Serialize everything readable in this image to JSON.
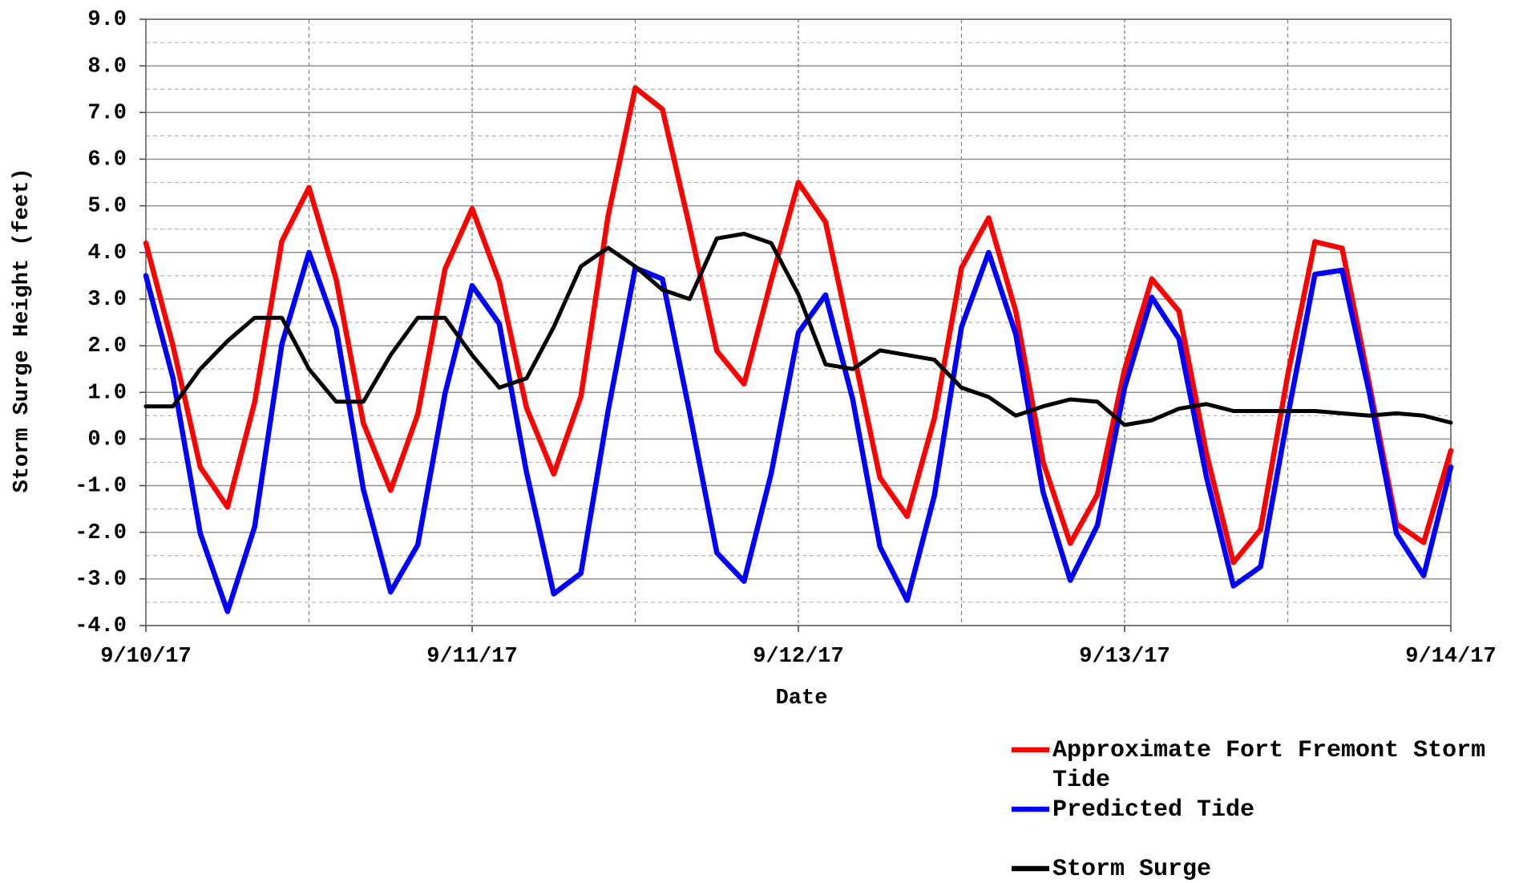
{
  "chart_data": {
    "type": "line",
    "xlabel": "Date",
    "ylabel": "Storm Surge Height (feet)",
    "x": [
      0,
      2,
      4,
      6,
      8,
      10,
      12,
      14,
      16,
      18,
      20,
      22,
      24,
      26,
      28,
      30,
      32,
      34,
      36,
      38,
      40,
      42,
      44,
      46,
      48,
      50,
      52,
      54,
      56,
      58,
      60,
      62,
      64,
      66,
      68,
      70,
      72,
      74,
      76,
      78,
      80,
      82,
      84,
      86,
      88,
      90,
      92,
      94,
      96
    ],
    "xlim": [
      0,
      96
    ],
    "xticks": [
      {
        "value": 0,
        "label": "9/10/17"
      },
      {
        "value": 24,
        "label": "9/11/17"
      },
      {
        "value": 48,
        "label": "9/12/17"
      },
      {
        "value": 72,
        "label": "9/13/17"
      },
      {
        "value": 96,
        "label": "9/14/17"
      }
    ],
    "ylim": [
      -4,
      9
    ],
    "yticks": [
      {
        "value": -4,
        "label": "-4.0"
      },
      {
        "value": -3,
        "label": "-3.0"
      },
      {
        "value": -2,
        "label": "-2.0"
      },
      {
        "value": -1,
        "label": "-1.0"
      },
      {
        "value": 0,
        "label": "0.0"
      },
      {
        "value": 1,
        "label": "1.0"
      },
      {
        "value": 2,
        "label": "2.0"
      },
      {
        "value": 3,
        "label": "3.0"
      },
      {
        "value": 4,
        "label": "4.0"
      },
      {
        "value": 5,
        "label": "5.0"
      },
      {
        "value": 6,
        "label": "6.0"
      },
      {
        "value": 7,
        "label": "7.0"
      },
      {
        "value": 8,
        "label": "8.0"
      },
      {
        "value": 9,
        "label": "9.0"
      }
    ],
    "grid": true,
    "legend": "bottom right",
    "series": [
      {
        "name": "Approximate Fort Fremont Storm Tide",
        "color": "#ff0000",
        "values": [
          4.2,
          1.99,
          -0.6,
          -1.46,
          0.79,
          4.24,
          5.39,
          3.42,
          0.34,
          -1.1,
          0.53,
          3.64,
          4.94,
          3.37,
          0.67,
          -0.75,
          0.91,
          4.78,
          7.53,
          7.07,
          4.55,
          1.89,
          1.18,
          3.4,
          5.5,
          4.65,
          1.93,
          -0.83,
          -1.66,
          0.44,
          3.67,
          4.74,
          2.73,
          -0.49,
          -2.24,
          -1.19,
          1.49,
          3.43,
          2.74,
          -0.29,
          -2.65,
          -1.94,
          1.37,
          4.23,
          4.09,
          1.17,
          -1.82,
          -2.22,
          -0.25
        ]
      },
      {
        "name": "Predicted Tide",
        "color": "#0000ff",
        "values": [
          3.5,
          1.3,
          -2.02,
          -3.7,
          -1.88,
          2.03,
          4.0,
          2.37,
          -1.08,
          -3.28,
          -2.27,
          0.97,
          3.29,
          2.47,
          -0.71,
          -3.32,
          -2.88,
          0.6,
          3.67,
          3.43,
          0.57,
          -2.44,
          -3.05,
          -0.74,
          2.28,
          3.09,
          0.85,
          -2.31,
          -3.46,
          -1.22,
          2.4,
          4.0,
          2.24,
          -1.14,
          -3.03,
          -1.85,
          1.1,
          3.04,
          2.15,
          -0.79,
          -3.15,
          -2.74,
          0.49,
          3.53,
          3.62,
          0.99,
          -2.03,
          -2.93,
          -0.6
        ]
      },
      {
        "name": "Storm Surge",
        "color": "#000000",
        "values": [
          0.7,
          0.7,
          1.5,
          2.1,
          2.6,
          2.6,
          1.5,
          0.8,
          0.8,
          1.8,
          2.6,
          2.6,
          1.8,
          1.1,
          1.3,
          2.4,
          3.7,
          4.1,
          3.7,
          3.2,
          3.0,
          4.3,
          4.4,
          4.2,
          3.1,
          1.6,
          1.5,
          1.9,
          1.8,
          1.7,
          1.1,
          0.9,
          0.5,
          0.7,
          0.85,
          0.8,
          0.3,
          0.4,
          0.65,
          0.75,
          0.6,
          0.6,
          0.6,
          0.6,
          0.55,
          0.5,
          0.55,
          0.5,
          0.35
        ]
      }
    ]
  }
}
